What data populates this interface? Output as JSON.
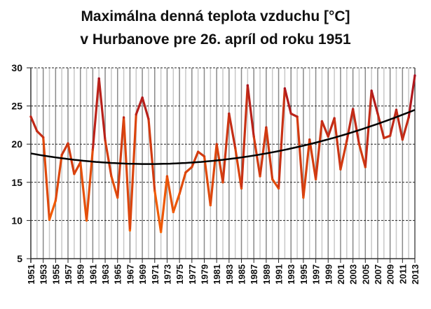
{
  "chart_data": {
    "type": "line",
    "title": [
      "Maximálna denná teplota vzduchu [°C]",
      "v Hurbanove pre 26. apríl od roku 1951"
    ],
    "xlabel": "",
    "ylabel": "",
    "ylim": [
      5,
      30
    ],
    "yticks": [
      5,
      10,
      15,
      20,
      25,
      30
    ],
    "xlim": [
      1951,
      2013
    ],
    "xtick_step": 2,
    "grid": {
      "horizontal": "dashed",
      "vertical": "every year"
    },
    "x": [
      1951,
      1952,
      1953,
      1954,
      1955,
      1956,
      1957,
      1958,
      1959,
      1960,
      1961,
      1962,
      1963,
      1964,
      1965,
      1966,
      1967,
      1968,
      1969,
      1970,
      1971,
      1972,
      1973,
      1974,
      1975,
      1976,
      1977,
      1978,
      1979,
      1980,
      1981,
      1982,
      1983,
      1984,
      1985,
      1986,
      1987,
      1988,
      1989,
      1990,
      1991,
      1992,
      1993,
      1994,
      1995,
      1996,
      1997,
      1998,
      1999,
      2000,
      2001,
      2002,
      2003,
      2004,
      2005,
      2006,
      2007,
      2008,
      2009,
      2010,
      2011,
      2012,
      2013
    ],
    "series": [
      {
        "values": [
          23.6,
          21.7,
          20.9,
          10.1,
          12.6,
          18.6,
          20.1,
          16.1,
          17.6,
          10.0,
          19.3,
          28.6,
          20.5,
          15.8,
          13.0,
          23.5,
          8.7,
          23.9,
          26.1,
          23.3,
          13.9,
          8.5,
          15.8,
          11.1,
          13.5,
          16.3,
          17.0,
          19.0,
          18.4,
          12.0,
          20.0,
          15.0,
          24.0,
          19.5,
          14.2,
          27.7,
          21.0,
          15.8,
          22.2,
          15.4,
          14.2,
          27.3,
          24.0,
          23.6,
          13.0,
          20.6,
          15.4,
          23.0,
          21.0,
          23.4,
          16.7,
          20.4,
          24.6,
          20.0,
          17.0,
          27.0,
          24.0,
          20.8,
          21.1,
          24.5,
          20.6,
          23.5,
          29.0
        ],
        "color_low": "#ff6a00",
        "color_high": "#a50d22"
      },
      {
        "type": "trend-polynomial",
        "values_note_free": true,
        "vertex_year": 1970,
        "vertex_value": 17.4,
        "start_value": 18.8,
        "end_value": 24.5,
        "color": "#000000"
      }
    ]
  }
}
